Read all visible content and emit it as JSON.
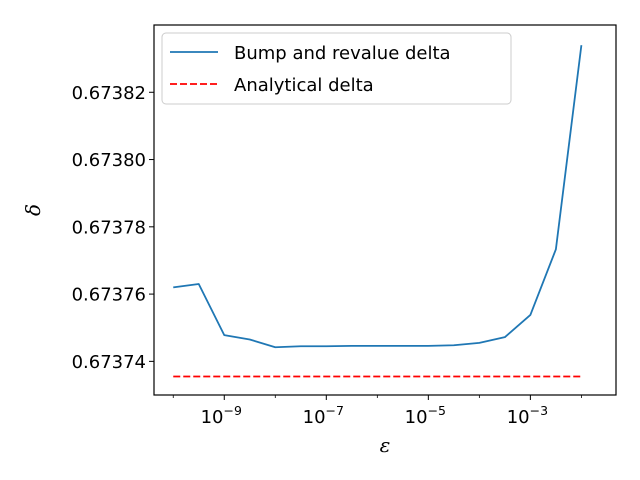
{
  "chart_data": {
    "type": "line",
    "title": "",
    "xlabel": "ε",
    "ylabel": "δ",
    "xscale": "log",
    "xlim": [
      1e-10,
      0.02
    ],
    "ylim": [
      0.67373,
      0.67384
    ],
    "x_ticks": [
      {
        "value": 1e-09,
        "base": "10",
        "exp": "−9"
      },
      {
        "value": 1e-07,
        "base": "10",
        "exp": "−7"
      },
      {
        "value": 1e-05,
        "base": "10",
        "exp": "−5"
      },
      {
        "value": 0.001,
        "base": "10",
        "exp": "−3"
      }
    ],
    "y_ticks": [
      {
        "value": 0.67374,
        "label": "0.67374"
      },
      {
        "value": 0.67376,
        "label": "0.67376"
      },
      {
        "value": 0.67378,
        "label": "0.67378"
      },
      {
        "value": 0.6738,
        "label": "0.67380"
      },
      {
        "value": 0.67382,
        "label": "0.67382"
      }
    ],
    "grid": false,
    "legend_position": "top-left",
    "series": [
      {
        "name": "Bump and revalue delta",
        "style": "solid",
        "color": "#1f77b4",
        "x": [
          1e-10,
          3.16e-10,
          1e-09,
          3.16e-09,
          1e-08,
          3.16e-08,
          1e-07,
          3.16e-07,
          1e-06,
          3.16e-06,
          1e-05,
          3.16e-05,
          0.0001,
          0.000316,
          0.001,
          0.00316,
          0.01
        ],
        "y": [
          0.673762,
          0.673763,
          0.6737478,
          0.6737465,
          0.6737442,
          0.6737445,
          0.6737445,
          0.6737446,
          0.6737446,
          0.6737446,
          0.6737446,
          0.6737448,
          0.6737455,
          0.6737472,
          0.6737538,
          0.6737733,
          0.673834
        ]
      },
      {
        "name": "Analytical delta",
        "style": "dashed",
        "color": "#ff0000",
        "x": [
          1e-10,
          0.01
        ],
        "y": [
          0.6737355,
          0.6737355
        ]
      }
    ]
  }
}
